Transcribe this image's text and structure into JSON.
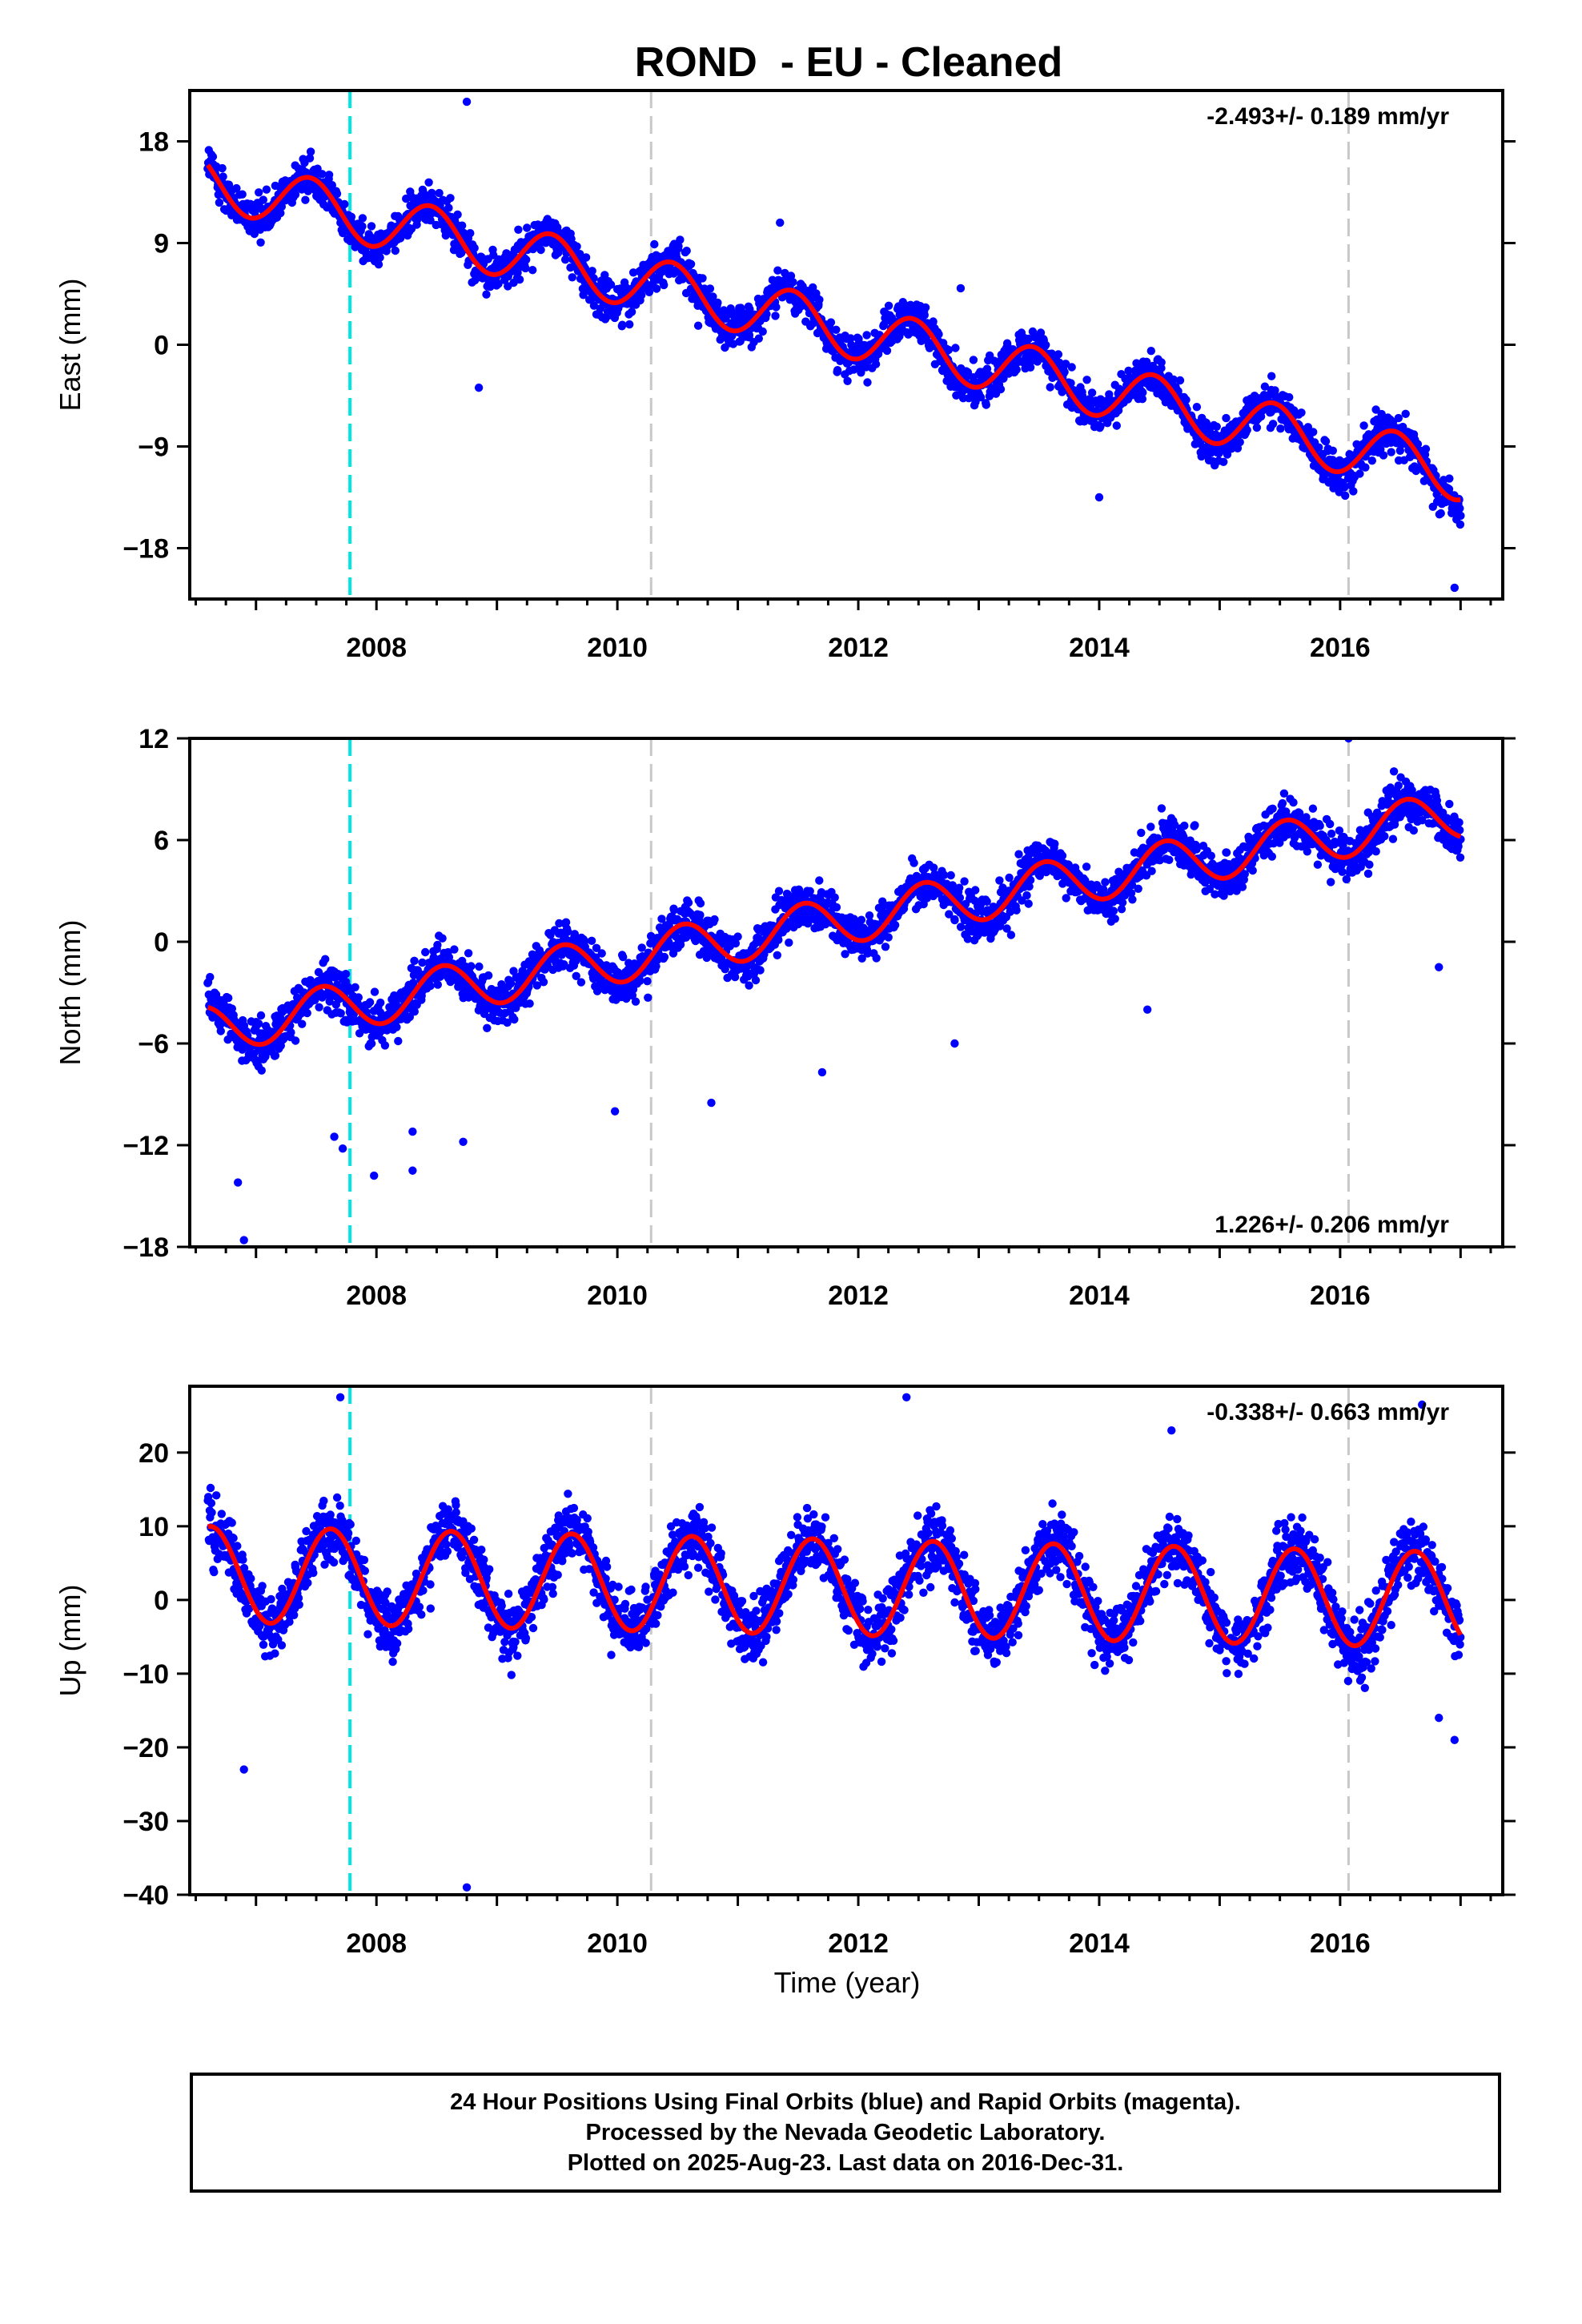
{
  "chart_data": {
    "type": "scatter",
    "title": "ROND  - EU - Cleaned",
    "xlabel": "Time (year)",
    "xlim": [
      2006.45,
      2017.35
    ],
    "xticks": [
      2008,
      2010,
      2012,
      2014,
      2016
    ],
    "grid": false,
    "point_color": "#0000ff",
    "fit_color": "#ff0000",
    "reference_lines": [
      {
        "x": 2007.78,
        "color": "#00e5e5",
        "style": "dashed"
      },
      {
        "x": 2010.28,
        "color": "#c8c8c8",
        "style": "dashed"
      },
      {
        "x": 2016.07,
        "color": "#c8c8c8",
        "style": "dashed"
      }
    ],
    "data_span": [
      2006.6,
      2017.0
    ],
    "panels": [
      {
        "ylabel": "East (mm)",
        "ylim": [
          -22.5,
          22.5
        ],
        "yticks": [
          -18,
          -9,
          0,
          9,
          18
        ],
        "rate_label": "-2.493+/- 0.189 mm/yr",
        "rate_position": "top-right",
        "fit": {
          "start": 14.5,
          "rate": -2.493,
          "amplitude": 2.4,
          "peak": 0.45
        },
        "scatter_sd": 1.7,
        "outliers": [
          [
            2008.75,
            21.5
          ],
          [
            2008.85,
            -3.8
          ],
          [
            2011.35,
            10.8
          ],
          [
            2012.85,
            5.0
          ],
          [
            2014.0,
            -13.5
          ],
          [
            2016.95,
            -21.5
          ]
        ]
      },
      {
        "ylabel": "North (mm)",
        "ylim": [
          -18,
          12
        ],
        "yticks": [
          -18,
          -12,
          -6,
          0,
          6,
          12
        ],
        "rate_label": "1.226+/- 0.206 mm/yr",
        "rate_position": "bottom-right",
        "fit": {
          "start": -5.2,
          "rate": 1.226,
          "amplitude": 1.4,
          "peak": 0.55
        },
        "scatter_sd": 1.3,
        "outliers": [
          [
            2006.9,
            -17.6
          ],
          [
            2006.85,
            -14.2
          ],
          [
            2007.65,
            -11.5
          ],
          [
            2007.72,
            -12.2
          ],
          [
            2007.98,
            -13.8
          ],
          [
            2008.3,
            -13.5
          ],
          [
            2008.3,
            -11.2
          ],
          [
            2008.72,
            -11.8
          ],
          [
            2009.98,
            -10.0
          ],
          [
            2010.78,
            -9.5
          ],
          [
            2011.7,
            -7.7
          ],
          [
            2012.8,
            -6.0
          ],
          [
            2014.4,
            -4.0
          ],
          [
            2016.07,
            12.0
          ],
          [
            2016.82,
            -1.5
          ]
        ]
      },
      {
        "ylabel": "Up (mm)",
        "ylim": [
          -40,
          29
        ],
        "yticks": [
          -40,
          -30,
          -20,
          -10,
          0,
          10,
          20
        ],
        "rate_label": "-0.338+/- 0.663 mm/yr",
        "rate_position": "top-right",
        "fit": {
          "start": 3.5,
          "rate": -0.338,
          "amplitude": 6.5,
          "peak": 0.62
        },
        "scatter_sd": 4.2,
        "outliers": [
          [
            2006.9,
            -23.0
          ],
          [
            2008.75,
            -39.0
          ],
          [
            2007.7,
            27.5
          ],
          [
            2012.4,
            27.5
          ],
          [
            2014.6,
            23.0
          ],
          [
            2016.68,
            26.5
          ],
          [
            2016.82,
            -16.0
          ],
          [
            2016.95,
            -19.0
          ]
        ]
      }
    ]
  },
  "footer": {
    "line1": "24 Hour Positions Using Final Orbits (blue) and Rapid Orbits (magenta).",
    "line2": "Processed by the Nevada Geodetic Laboratory.",
    "line3": "Plotted on 2025-Aug-23. Last data on 2016-Dec-31."
  }
}
